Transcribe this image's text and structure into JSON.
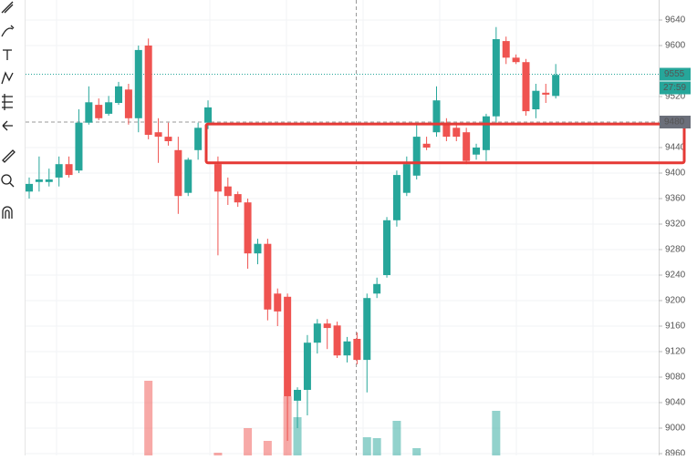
{
  "chart_data": {
    "type": "candlestick",
    "ylim": [
      8957.14,
      9671.43
    ],
    "yticks": [
      9640,
      9600,
      9520,
      9440,
      9400,
      9360,
      9320,
      9280,
      9240,
      9200,
      9160,
      9120,
      9080,
      9040,
      9000,
      8960
    ],
    "grid": true,
    "up_color": "#26a69a",
    "down_color": "#ef5350",
    "series": [
      {
        "open": [
          9371,
          9386,
          9386,
          9393,
          9414,
          9404,
          9479,
          9507,
          9493,
          9510,
          9531,
          9486,
          9600,
          9464,
          9457,
          9436,
          9369,
          9436,
          9479,
          9414,
          9379,
          9367,
          9354,
          9274,
          9289,
          9211,
          9206,
          9043,
          9060,
          9134,
          9164,
          9161,
          9114,
          9140,
          9107,
          9211,
          9240,
          9326,
          9369,
          9396,
          9446,
          9464,
          9479,
          9471,
          9464,
          9429,
          9436,
          9489,
          9607,
          9581,
          9574,
          9500,
          9526,
          9521
        ],
        "high": [
          9393,
          9426,
          9407,
          9426,
          9426,
          9500,
          9536,
          9517,
          9521,
          9543,
          9540,
          9600,
          9611,
          9486,
          9479,
          9457,
          9424,
          9479,
          9514,
          9426,
          9393,
          9371,
          9360,
          9297,
          9297,
          9219,
          9211,
          9064,
          9146,
          9171,
          9171,
          9167,
          9143,
          9150,
          9211,
          9236,
          9331,
          9404,
          9426,
          9476,
          9457,
          9536,
          9486,
          9479,
          9471,
          9446,
          9493,
          9629,
          9614,
          9586,
          9579,
          9540,
          9540,
          9571
        ],
        "low": [
          9360,
          9371,
          9379,
          9379,
          9393,
          9400,
          9476,
          9483,
          9490,
          9507,
          9476,
          9464,
          9453,
          9416,
          9443,
          9336,
          9364,
          9421,
          9469,
          9271,
          9350,
          9347,
          9250,
          9257,
          9169,
          9160,
          8980,
          9000,
          9020,
          9117,
          9124,
          9110,
          9103,
          9100,
          9056,
          9204,
          9236,
          9316,
          9364,
          9390,
          9436,
          9457,
          9450,
          9450,
          9414,
          9421,
          9419,
          9479,
          9571,
          9571,
          9490,
          9486,
          9510,
          9517
        ],
        "close": [
          9383,
          9390,
          9390,
          9414,
          9397,
          9479,
          9511,
          9486,
          9511,
          9536,
          9486,
          9593,
          9460,
          9457,
          9450,
          9364,
          9421,
          9471,
          9503,
          9371,
          9364,
          9354,
          9274,
          9289,
          9186,
          9183,
          9050,
          9060,
          9134,
          9164,
          9157,
          9114,
          9136,
          9107,
          9204,
          9226,
          9326,
          9397,
          9414,
          9457,
          9440,
          9514,
          9457,
          9457,
          9419,
          9440,
          9489,
          9610,
          9581,
          9574,
          9497,
          9529,
          9523,
          9554
        ],
        "volume": [
          null,
          null,
          null,
          null,
          null,
          null,
          null,
          null,
          null,
          null,
          null,
          null,
          82,
          null,
          null,
          null,
          null,
          null,
          null,
          3,
          null,
          null,
          30,
          null,
          16,
          null,
          65,
          42,
          null,
          null,
          null,
          null,
          null,
          null,
          20,
          19,
          null,
          38,
          null,
          8,
          null,
          null,
          null,
          null,
          null,
          null,
          null,
          49,
          null,
          null,
          null,
          null,
          null,
          null
        ]
      }
    ],
    "vlim": [
      0,
      200
    ],
    "last_price": 9555,
    "countdown": "27:59",
    "crosshair_price": 9480,
    "highlight_box": {
      "from": 9416,
      "to": 9477,
      "color": "#e53935"
    }
  }
}
